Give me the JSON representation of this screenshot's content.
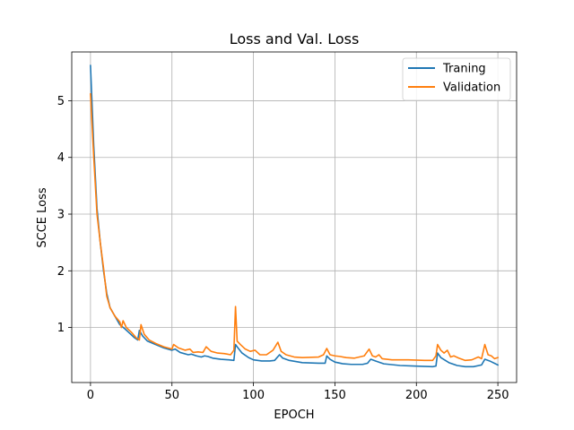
{
  "chart_data": {
    "type": "line",
    "title": "Loss and Val. Loss",
    "xlabel": "EPOCH",
    "ylabel": "SCCE Loss",
    "xlim": [
      -11.5,
      261.5
    ],
    "ylim": [
      0.03,
      5.86
    ],
    "xticks": [
      0,
      50,
      100,
      150,
      200,
      250
    ],
    "yticks": [
      1,
      2,
      3,
      4,
      5
    ],
    "grid": true,
    "legend_position": "top-right",
    "series": [
      {
        "name": "Traning",
        "color": "#1f77b4",
        "points": [
          [
            0,
            5.62
          ],
          [
            2,
            4.2
          ],
          [
            4,
            3.1
          ],
          [
            6,
            2.5
          ],
          [
            8,
            2.0
          ],
          [
            10,
            1.6
          ],
          [
            12,
            1.35
          ],
          [
            15,
            1.2
          ],
          [
            18,
            1.05
          ],
          [
            21,
            0.98
          ],
          [
            24,
            0.9
          ],
          [
            27,
            0.82
          ],
          [
            29,
            0.78
          ],
          [
            30,
            0.95
          ],
          [
            32,
            0.85
          ],
          [
            35,
            0.76
          ],
          [
            40,
            0.7
          ],
          [
            45,
            0.64
          ],
          [
            50,
            0.6
          ],
          [
            52,
            0.62
          ],
          [
            55,
            0.56
          ],
          [
            60,
            0.52
          ],
          [
            62,
            0.53
          ],
          [
            65,
            0.5
          ],
          [
            68,
            0.48
          ],
          [
            70,
            0.5
          ],
          [
            72,
            0.49
          ],
          [
            75,
            0.46
          ],
          [
            80,
            0.44
          ],
          [
            85,
            0.43
          ],
          [
            88,
            0.42
          ],
          [
            89,
            0.7
          ],
          [
            90,
            0.66
          ],
          [
            93,
            0.55
          ],
          [
            97,
            0.47
          ],
          [
            100,
            0.43
          ],
          [
            105,
            0.41
          ],
          [
            110,
            0.41
          ],
          [
            113,
            0.42
          ],
          [
            116,
            0.52
          ],
          [
            118,
            0.46
          ],
          [
            122,
            0.42
          ],
          [
            130,
            0.38
          ],
          [
            140,
            0.37
          ],
          [
            144,
            0.37
          ],
          [
            145,
            0.5
          ],
          [
            147,
            0.44
          ],
          [
            150,
            0.39
          ],
          [
            155,
            0.36
          ],
          [
            160,
            0.35
          ],
          [
            167,
            0.35
          ],
          [
            170,
            0.37
          ],
          [
            172,
            0.44
          ],
          [
            175,
            0.41
          ],
          [
            180,
            0.36
          ],
          [
            190,
            0.33
          ],
          [
            200,
            0.32
          ],
          [
            210,
            0.31
          ],
          [
            212,
            0.32
          ],
          [
            213,
            0.55
          ],
          [
            215,
            0.47
          ],
          [
            220,
            0.38
          ],
          [
            225,
            0.33
          ],
          [
            230,
            0.31
          ],
          [
            235,
            0.31
          ],
          [
            240,
            0.34
          ],
          [
            242,
            0.44
          ],
          [
            245,
            0.41
          ],
          [
            250,
            0.34
          ]
        ]
      },
      {
        "name": "Validation",
        "color": "#ff7f0e",
        "points": [
          [
            0,
            5.12
          ],
          [
            2,
            4.0
          ],
          [
            4,
            3.0
          ],
          [
            6,
            2.5
          ],
          [
            8,
            2.05
          ],
          [
            10,
            1.55
          ],
          [
            12,
            1.35
          ],
          [
            15,
            1.2
          ],
          [
            18,
            1.1
          ],
          [
            19,
            1.0
          ],
          [
            20,
            1.12
          ],
          [
            22,
            1.0
          ],
          [
            25,
            0.92
          ],
          [
            28,
            0.82
          ],
          [
            30,
            0.78
          ],
          [
            31,
            1.05
          ],
          [
            33,
            0.88
          ],
          [
            36,
            0.78
          ],
          [
            40,
            0.72
          ],
          [
            45,
            0.66
          ],
          [
            50,
            0.62
          ],
          [
            51,
            0.7
          ],
          [
            54,
            0.64
          ],
          [
            58,
            0.6
          ],
          [
            61,
            0.62
          ],
          [
            63,
            0.56
          ],
          [
            66,
            0.57
          ],
          [
            69,
            0.56
          ],
          [
            71,
            0.66
          ],
          [
            74,
            0.58
          ],
          [
            78,
            0.55
          ],
          [
            82,
            0.54
          ],
          [
            86,
            0.52
          ],
          [
            88,
            0.6
          ],
          [
            89,
            1.37
          ],
          [
            90,
            0.76
          ],
          [
            92,
            0.7
          ],
          [
            95,
            0.62
          ],
          [
            98,
            0.58
          ],
          [
            101,
            0.6
          ],
          [
            104,
            0.52
          ],
          [
            108,
            0.52
          ],
          [
            112,
            0.6
          ],
          [
            115,
            0.74
          ],
          [
            117,
            0.58
          ],
          [
            120,
            0.52
          ],
          [
            125,
            0.48
          ],
          [
            130,
            0.47
          ],
          [
            140,
            0.48
          ],
          [
            143,
            0.52
          ],
          [
            145,
            0.63
          ],
          [
            147,
            0.52
          ],
          [
            150,
            0.5
          ],
          [
            153,
            0.49
          ],
          [
            157,
            0.47
          ],
          [
            162,
            0.46
          ],
          [
            168,
            0.5
          ],
          [
            171,
            0.62
          ],
          [
            173,
            0.5
          ],
          [
            175,
            0.48
          ],
          [
            177,
            0.52
          ],
          [
            179,
            0.45
          ],
          [
            185,
            0.43
          ],
          [
            195,
            0.43
          ],
          [
            205,
            0.42
          ],
          [
            210,
            0.42
          ],
          [
            212,
            0.5
          ],
          [
            213,
            0.7
          ],
          [
            215,
            0.6
          ],
          [
            217,
            0.55
          ],
          [
            219,
            0.6
          ],
          [
            221,
            0.48
          ],
          [
            223,
            0.5
          ],
          [
            226,
            0.46
          ],
          [
            230,
            0.42
          ],
          [
            234,
            0.43
          ],
          [
            238,
            0.48
          ],
          [
            240,
            0.45
          ],
          [
            242,
            0.7
          ],
          [
            244,
            0.52
          ],
          [
            246,
            0.5
          ],
          [
            248,
            0.45
          ],
          [
            250,
            0.47
          ]
        ]
      }
    ]
  }
}
